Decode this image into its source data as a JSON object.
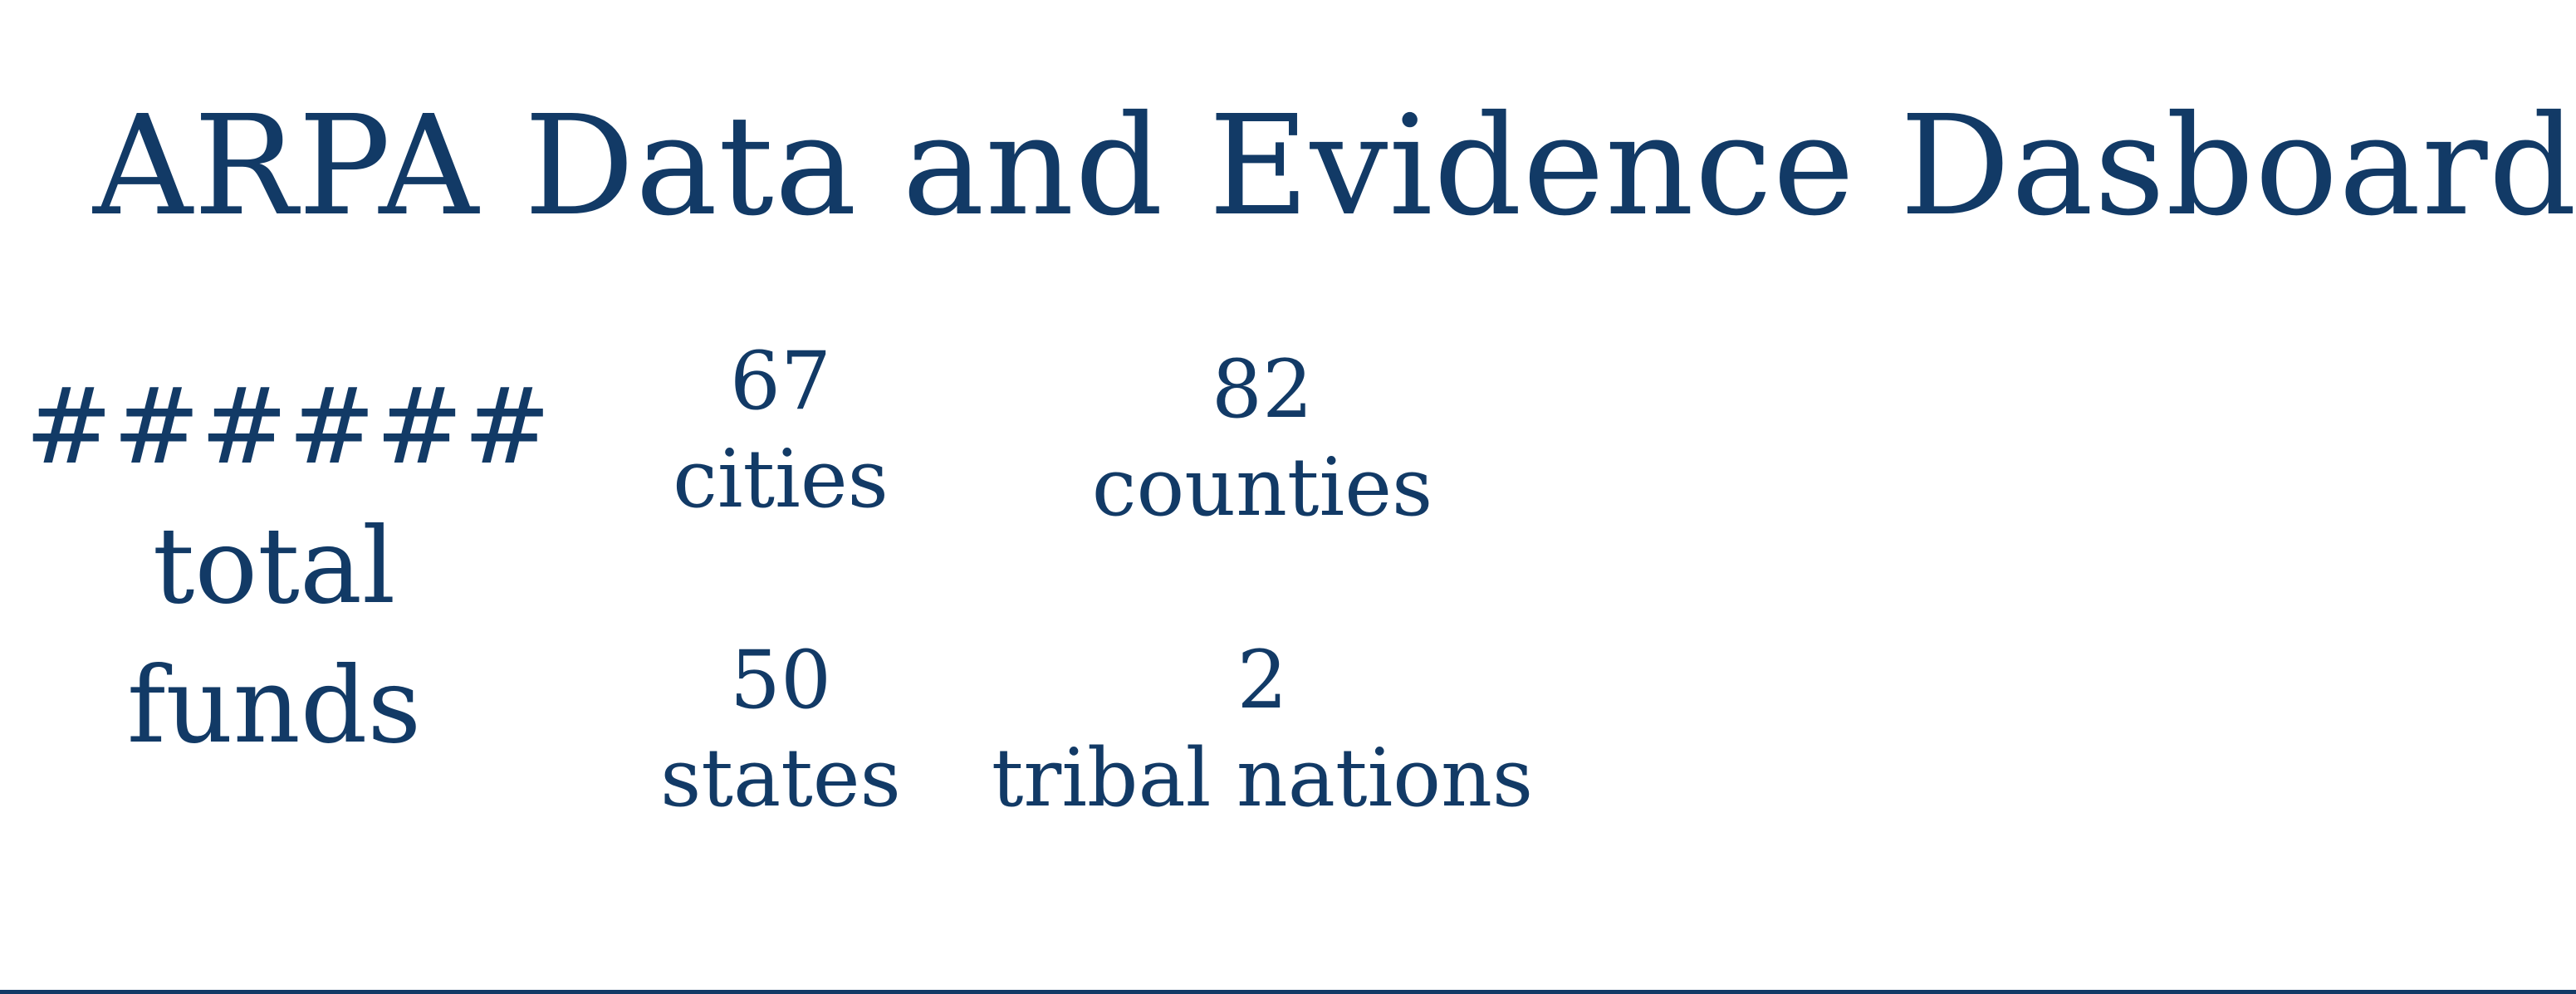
{
  "page": {
    "title": "ARPA Data and Evidence Dasboard",
    "text_color": "#123a66",
    "background_color": "#ffffff"
  },
  "total": {
    "value": "######",
    "label_line1": "total",
    "label_line2": "funds"
  },
  "stats": [
    {
      "value": "67",
      "label": "cities"
    },
    {
      "value": "82",
      "label": "counties"
    },
    {
      "value": "50",
      "label": "states"
    },
    {
      "value": "2",
      "label": "tribal nations"
    }
  ]
}
